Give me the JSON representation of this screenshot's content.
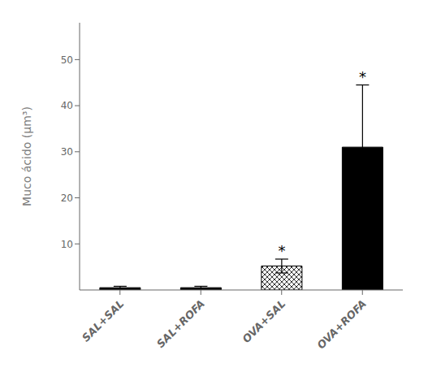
{
  "chart_data": {
    "type": "bar",
    "categories": [
      "SAL+SAL",
      "SAL+ROFA",
      "OVA+SAL",
      "OVA+ROFA"
    ],
    "values": [
      0.5,
      0.5,
      5.2,
      31.0
    ],
    "errors": [
      0.3,
      0.3,
      1.5,
      13.5
    ],
    "colors": [
      "#000000",
      "#000000",
      "#ffffff",
      "#000000"
    ],
    "ylabel": "Muco ácido (μm³)",
    "ylim": [
      0,
      58
    ],
    "yticks": [
      10,
      20,
      30,
      40,
      50
    ],
    "annotations": [
      {
        "category": "OVA+SAL",
        "text": "*"
      },
      {
        "category": "OVA+ROFA",
        "text": "*"
      }
    ],
    "grid": false
  }
}
